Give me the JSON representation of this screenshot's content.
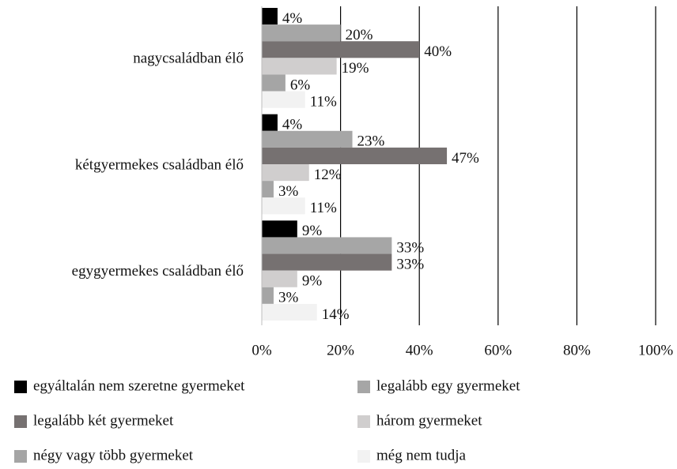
{
  "chart_data": {
    "type": "hbar",
    "categories": [
      "nagycsaládban élő",
      "kétgyermekes családban élő",
      "egygyermekes családban élő"
    ],
    "series": [
      {
        "name": "egyáltalán nem szeretne gyermeket",
        "color": "#000000",
        "values": [
          4,
          4,
          9
        ],
        "value_labels": [
          "4%",
          "4%",
          "9%"
        ]
      },
      {
        "name": "legalább egy gyermeket",
        "color": "#a6a6a6",
        "values": [
          20,
          23,
          33
        ],
        "value_labels": [
          "20%",
          "23%",
          "33%"
        ]
      },
      {
        "name": "legalább két gyermeket",
        "color": "#767171",
        "values": [
          40,
          47,
          33
        ],
        "value_labels": [
          "40%",
          "47%",
          "33%"
        ]
      },
      {
        "name": "három gyermeket",
        "color": "#d0cece",
        "values": [
          19,
          12,
          9
        ],
        "value_labels": [
          "19%",
          "12%",
          "9%"
        ]
      },
      {
        "name": "négy vagy több gyermeket",
        "color": "#a5a5a5",
        "values": [
          6,
          3,
          3
        ],
        "value_labels": [
          "6%",
          "3%",
          "3%"
        ]
      },
      {
        "name": "még nem tudja",
        "color": "#f2f2f2",
        "values": [
          11,
          11,
          14
        ],
        "value_labels": [
          "11%",
          "11%",
          "14%"
        ]
      }
    ],
    "xlim": [
      0,
      100
    ],
    "xticks": [
      {
        "value": 0,
        "label": "0%"
      },
      {
        "value": 20,
        "label": "20%"
      },
      {
        "value": 40,
        "label": "40%"
      },
      {
        "value": 60,
        "label": "60%"
      },
      {
        "value": 80,
        "label": "80%"
      },
      {
        "value": 100,
        "label": "100%"
      }
    ],
    "grid": true
  }
}
